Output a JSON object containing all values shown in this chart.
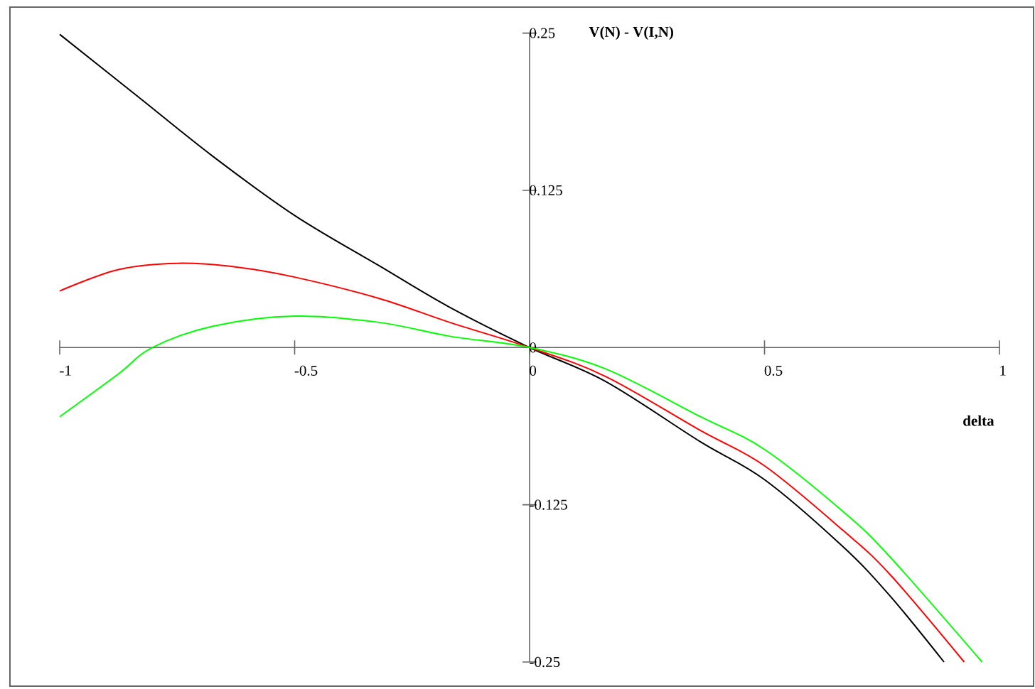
{
  "chart_data": {
    "type": "line",
    "xlabel": "delta",
    "ylabel": "V(N) - V(I,N)",
    "xlim": [
      -1,
      1
    ],
    "ylim": [
      -0.25,
      0.25
    ],
    "xticks": [
      -1,
      -0.5,
      0,
      0.5,
      1
    ],
    "yticks": [
      -0.25,
      -0.125,
      0,
      0.125,
      0.25
    ],
    "grid": false,
    "series": [
      {
        "color": "#000000",
        "x": [
          -1,
          -0.825,
          -0.674,
          -0.5,
          -0.32,
          -0.17,
          0,
          0.162,
          0.364,
          0.5,
          0.666,
          0.766,
          0.882
        ],
        "values": [
          0.249,
          0.197,
          0.152,
          0.105,
          0.065,
          0.032,
          0,
          -0.027,
          -0.075,
          -0.105,
          -0.158,
          -0.197,
          -0.25
        ]
      },
      {
        "color": "#ff0000",
        "x": [
          -1,
          -0.875,
          -0.749,
          -0.624,
          -0.5,
          -0.32,
          -0.17,
          0,
          0.162,
          0.364,
          0.5,
          0.666,
          0.766,
          0.925
        ],
        "values": [
          0.045,
          0.062,
          0.067,
          0.064,
          0.056,
          0.039,
          0.02,
          0,
          -0.023,
          -0.066,
          -0.094,
          -0.145,
          -0.18,
          -0.25
        ]
      },
      {
        "color": "#00ff00",
        "x": [
          -1,
          -0.875,
          -0.803,
          -0.674,
          -0.5,
          -0.32,
          -0.17,
          0,
          0.162,
          0.364,
          0.5,
          0.666,
          0.766,
          0.963
        ],
        "values": [
          -0.055,
          -0.021,
          0,
          0.017,
          0.025,
          0.02,
          0.009,
          0,
          -0.017,
          -0.055,
          -0.081,
          -0.13,
          -0.166,
          -0.25
        ]
      }
    ]
  }
}
